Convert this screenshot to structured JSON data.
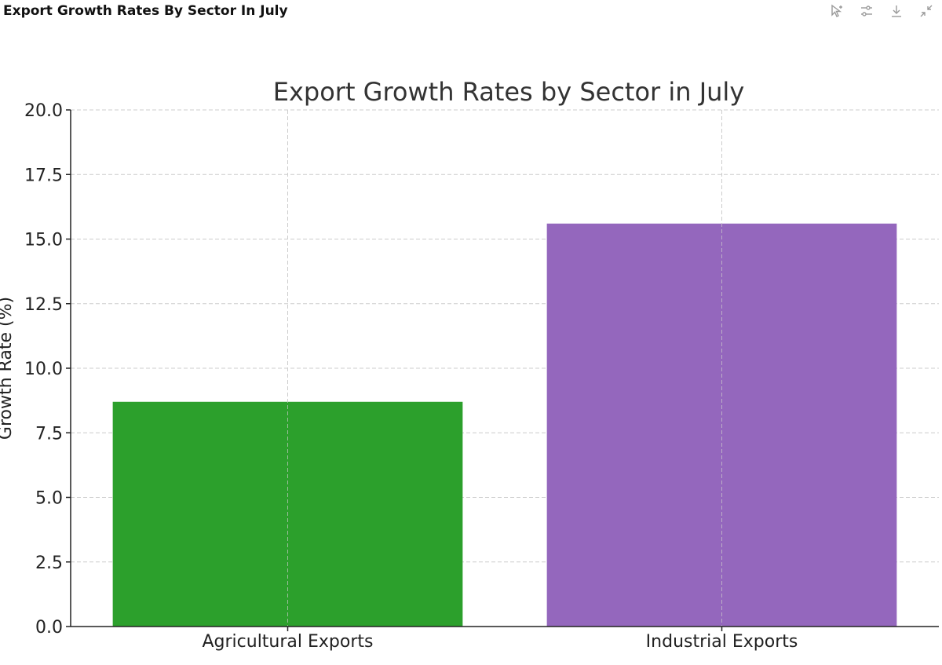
{
  "header": {
    "title": "Export Growth Rates By Sector In July"
  },
  "toolbar": {
    "icons": [
      "cursor-sparkle-icon",
      "sliders-icon",
      "download-icon",
      "collapse-icon"
    ]
  },
  "colors": {
    "agricultural": "#2ca02c",
    "industrial": "#9467bd",
    "grid": "#cccccc",
    "axis": "#222222"
  },
  "chart_data": {
    "type": "bar",
    "title": "Export Growth Rates by Sector in July",
    "xlabel": "",
    "ylabel": "Growth Rate (%)",
    "categories": [
      "Agricultural Exports",
      "Industrial Exports"
    ],
    "values": [
      8.7,
      15.6
    ],
    "ylim": [
      0,
      20
    ],
    "yticks": [
      "0.0",
      "2.5",
      "5.0",
      "7.5",
      "10.0",
      "12.5",
      "15.0",
      "17.5",
      "20.0"
    ],
    "grid": true
  }
}
